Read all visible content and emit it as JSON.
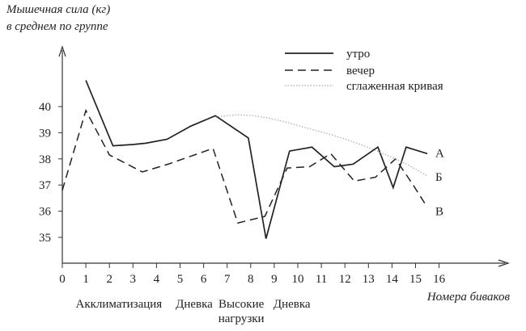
{
  "chart_data": {
    "type": "line",
    "ylabel_lines": [
      "Мышечная сила (кг)",
      "в среднем по группе"
    ],
    "xlabel": "Номера биваков",
    "xlim": [
      0,
      16
    ],
    "ylim": [
      33.8,
      41.3
    ],
    "x_ticks": [
      0,
      1,
      2,
      3,
      4,
      5,
      6,
      7,
      8,
      9,
      10,
      11,
      12,
      13,
      14,
      15,
      16
    ],
    "y_ticks": [
      35,
      36,
      37,
      38,
      39,
      40
    ],
    "legend_position": "top-right",
    "legend": [
      {
        "label": "утро",
        "style": "solid"
      },
      {
        "label": "вечер",
        "style": "dashed"
      },
      {
        "label": "сглаженная кривая",
        "style": "dotted"
      }
    ],
    "series": [
      {
        "key": "morning",
        "style": "solid",
        "color": "#222222",
        "end_label": "А",
        "x": [
          1,
          2.15,
          3,
          3.55,
          4.45,
          5.45,
          6.5,
          7.9,
          8.65,
          9.65,
          10.6,
          11.55,
          12.35,
          13.4,
          14.05,
          14.6,
          15.5
        ],
        "y": [
          41.0,
          38.5,
          38.55,
          38.6,
          38.75,
          39.25,
          39.65,
          38.8,
          34.95,
          38.3,
          38.45,
          37.7,
          37.8,
          38.45,
          36.9,
          38.45,
          38.2
        ]
      },
      {
        "key": "evening",
        "style": "dashed",
        "color": "#222222",
        "end_label": "В",
        "x": [
          0,
          1,
          2.0,
          3.4,
          4.5,
          5.45,
          6.4,
          7.45,
          8.6,
          9.55,
          10.5,
          11.4,
          12.4,
          13.3,
          14.15,
          14.9,
          15.5
        ],
        "y": [
          36.8,
          39.85,
          38.15,
          37.5,
          37.8,
          38.1,
          38.4,
          35.55,
          35.8,
          37.65,
          37.7,
          38.2,
          37.15,
          37.3,
          38.0,
          37.0,
          36.15
        ]
      },
      {
        "key": "smoothed",
        "style": "dotted",
        "color": "#aaaaaa",
        "end_label": "Б",
        "x": [
          6.5,
          7.5,
          8.5,
          9.5,
          10.5,
          11.5,
          12.5,
          13.5,
          14.5,
          15.5
        ],
        "y": [
          39.6,
          39.68,
          39.6,
          39.4,
          39.15,
          38.9,
          38.6,
          38.25,
          37.85,
          37.35
        ]
      }
    ],
    "annotations": [
      {
        "text": "Акклиматизация",
        "x": 2.4,
        "line": 1
      },
      {
        "text": "Дневка",
        "x": 5.6,
        "line": 1
      },
      {
        "text": "Высокие",
        "x": 7.6,
        "line": 1
      },
      {
        "text": "нагрузки",
        "x": 7.6,
        "line": 2
      },
      {
        "text": "Дневка",
        "x": 9.75,
        "line": 1
      }
    ]
  }
}
